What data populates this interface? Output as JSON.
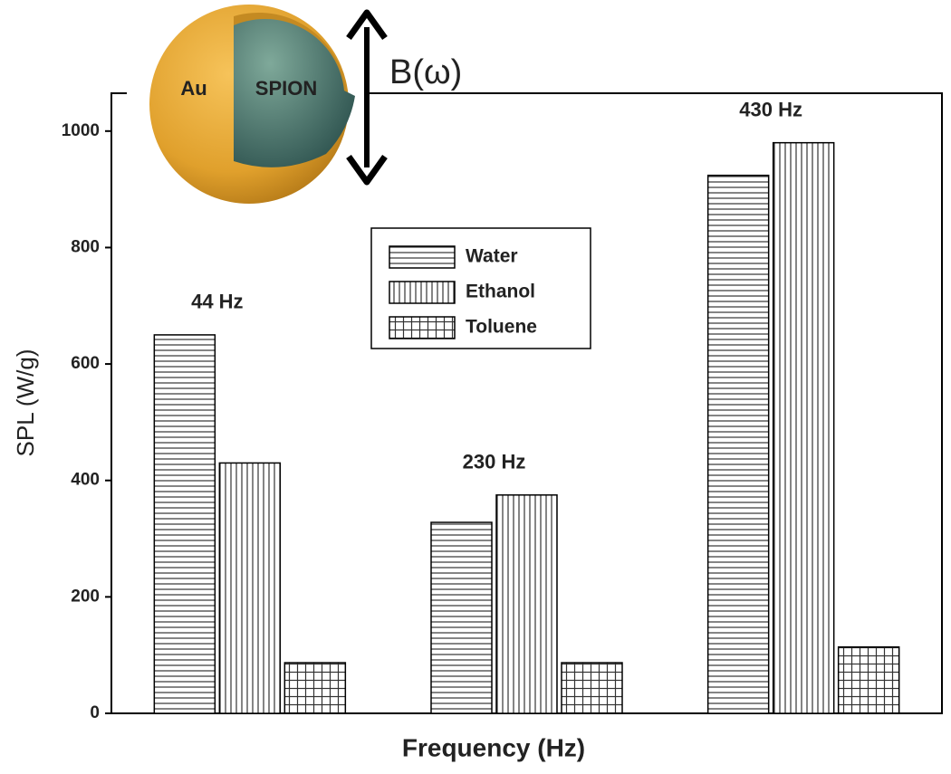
{
  "chart_data": {
    "type": "bar",
    "ylabel": "SPL (W/g)",
    "xlabel": "Frequency (Hz)",
    "categories": [
      "44 Hz",
      "230 Hz",
      "430 Hz"
    ],
    "series": [
      {
        "name": "Water",
        "color": "#000000",
        "hatch": "horizontal",
        "values": [
          650,
          328,
          924
        ]
      },
      {
        "name": "Ethanol",
        "color": "#000000",
        "hatch": "vertical",
        "values": [
          430,
          375,
          980
        ]
      },
      {
        "name": "Toluene",
        "color": "#000000",
        "hatch": "grid",
        "values": [
          87,
          87,
          114
        ]
      }
    ],
    "ylim": [
      0,
      1065
    ],
    "yticks": [
      0,
      200,
      400,
      600,
      800,
      1000
    ],
    "annotations": {
      "field": "B(ω)",
      "shell": "Au",
      "core": "SPION"
    }
  }
}
